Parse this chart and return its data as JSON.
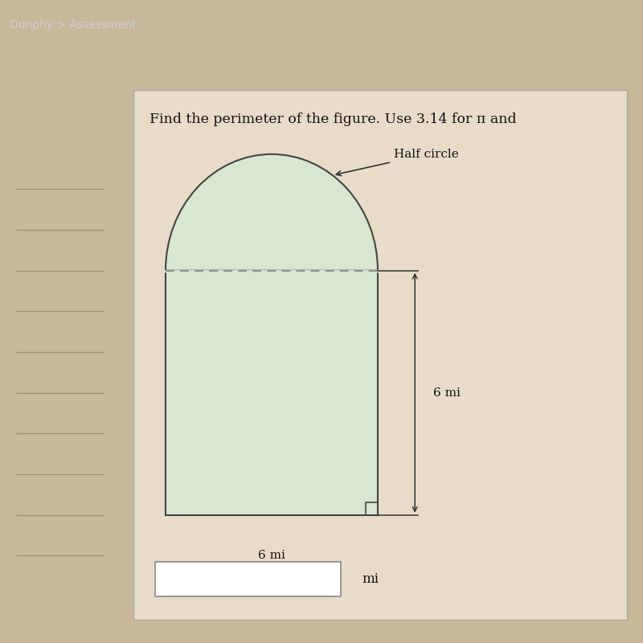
{
  "bg_color_top": "#1a1a2e",
  "bg_color_body": "#c8b89a",
  "left_col_color": "#b8a080",
  "panel_bg": "#d6c5aa",
  "panel_inner_bg": "#e8dcc8",
  "figure_fill": "#d8e8d0",
  "figure_stroke": "#444444",
  "title_text": "Find the perimeter of the figure. Use 3.14 for π and",
  "label_half_circle": "Half circle",
  "label_width": "6 mi",
  "label_height": "6 mi",
  "label_answer_unit": "mi",
  "nav_text": "Dunphy > Assessment",
  "nav_color": "#ccccdd",
  "sidebar_line_color": "#a09070",
  "answer_box_color": "#ede0cc",
  "dim_line_color": "#333333",
  "dash_color": "#888888"
}
